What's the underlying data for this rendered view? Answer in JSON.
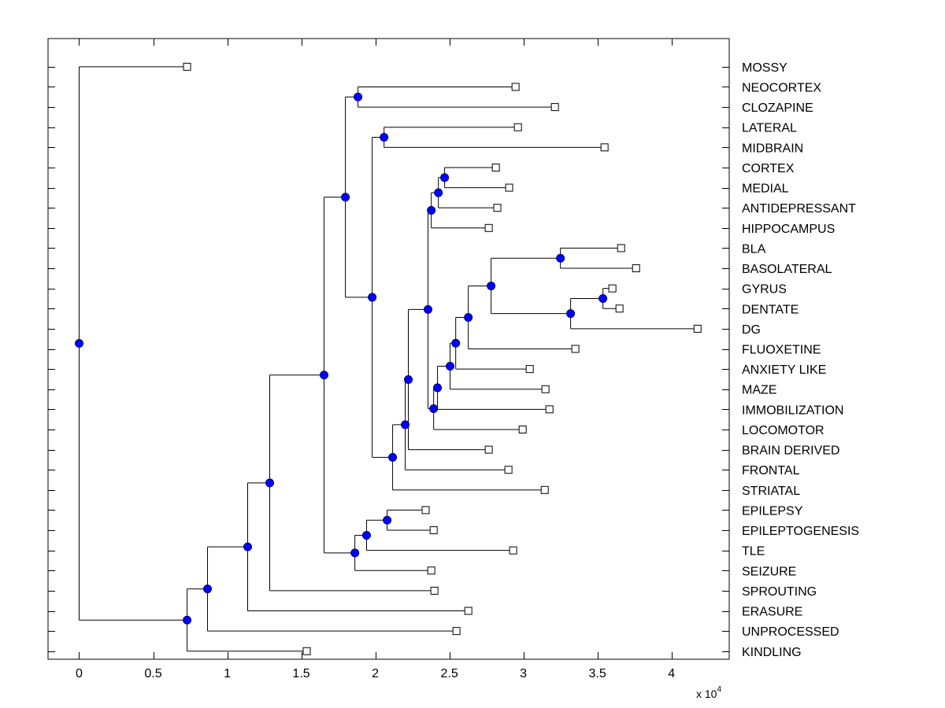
{
  "chart_data": {
    "type": "dendrogram",
    "title": "",
    "xlabel": "",
    "ylabel": "",
    "x_multiplier_label": "x 10",
    "x_multiplier_exponent": "4",
    "xlim": [
      -0.21,
      4.39
    ],
    "ylim": [
      -0.4,
      30.4
    ],
    "xticks": [
      0,
      0.5,
      1,
      1.5,
      2,
      2.5,
      3,
      3.5,
      4
    ],
    "xtick_labels": [
      "0",
      "0.5",
      "1",
      "1.5",
      "2",
      "2.5",
      "3",
      "3.5",
      "4"
    ],
    "grid": false,
    "leaves_top_to_bottom": [
      "MOSSY",
      "NEOCORTEX",
      "CLOZAPINE",
      "LATERAL",
      "MIDBRAIN",
      "CORTEX",
      "MEDIAL",
      "ANTIDEPRESSANT",
      "HIPPOCAMPUS",
      "BLA",
      "BASOLATERAL",
      "GYRUS",
      "DENTATE",
      "DG",
      "FLUOXETINE",
      "ANXIETY LIKE",
      "MAZE",
      "IMMOBILIZATION",
      "LOCOMOTOR",
      "BRAIN DERIVED",
      "FRONTAL",
      "STRIATAL",
      "EPILEPSY",
      "EPILEPTOGENESIS",
      "TLE",
      "SEIZURE",
      "SPROUTING",
      "ERASURE",
      "UNPROCESSED",
      "KINDLING"
    ],
    "node_color": "#0000ff",
    "node_edge_color": "#00007a",
    "leaf_marker_color": "#ffffff",
    "line_color": "#000000",
    "tree": {
      "height": 0,
      "children": [
        {
          "leaf": "MOSSY",
          "height": 0.729
        },
        {
          "height": 0.729,
          "children": [
            {
              "height": 0.867,
              "children": [
                {
                  "height": 1.138,
                  "children": [
                    {
                      "height": 1.287,
                      "children": [
                        {
                          "height": 1.654,
                          "children": [
                            {
                              "height": 1.798,
                              "children": [
                                {
                                  "height": 1.883,
                                  "children": [
                                    {
                                      "leaf": "NEOCORTEX",
                                      "height": 2.947
                                    },
                                    {
                                      "leaf": "CLOZAPINE",
                                      "height": 3.213
                                    }
                                  ]
                                },
                                {
                                  "height": 1.979,
                                  "children": [
                                    {
                                      "height": 2.059,
                                      "children": [
                                        {
                                          "leaf": "LATERAL",
                                          "height": 2.963
                                        },
                                        {
                                          "leaf": "MIDBRAIN",
                                          "height": 3.548
                                        }
                                      ]
                                    },
                                    {
                                      "height": 2.117,
                                      "children": [
                                        {
                                          "height": 2.202,
                                          "children": [
                                            {
                                              "height": 2.223,
                                              "children": [
                                                {
                                                  "height": 2.356,
                                                  "children": [
                                                    {
                                                      "height": 2.378,
                                                      "children": [
                                                        {
                                                          "height": 2.426,
                                                          "children": [
                                                            {
                                                              "height": 2.468,
                                                              "children": [
                                                                {
                                                                  "leaf": "CORTEX",
                                                                  "height": 2.814
                                                                },
                                                                {
                                                                  "leaf": "MEDIAL",
                                                                  "height": 2.904
                                                                }
                                                              ]
                                                            },
                                                            {
                                                              "leaf": "ANTIDEPRESSANT",
                                                              "height": 2.824
                                                            }
                                                          ]
                                                        },
                                                        {
                                                          "leaf": "HIPPOCAMPUS",
                                                          "height": 2.766
                                                        }
                                                      ]
                                                    },
                                                    {
                                                      "height": 2.394,
                                                      "children": [
                                                        {
                                                          "height": 2.42,
                                                          "children": [
                                                            {
                                                              "height": 2.505,
                                                              "children": [
                                                                {
                                                                  "height": 2.543,
                                                                  "children": [
                                                                    {
                                                                      "height": 2.628,
                                                                      "children": [
                                                                        {
                                                                          "height": 2.782,
                                                                          "children": [
                                                                            {
                                                                              "height": 3.25,
                                                                              "children": [
                                                                                {
                                                                                  "leaf": "BLA",
                                                                                  "height": 3.66
                                                                                },
                                                                                {
                                                                                  "leaf": "BASOLATERAL",
                                                                                  "height": 3.761
                                                                                }
                                                                              ]
                                                                            },
                                                                            {
                                                                              "height": 3.319,
                                                                              "children": [
                                                                                {
                                                                                  "height": 3.537,
                                                                                  "children": [
                                                                                    {
                                                                                      "leaf": "GYRUS",
                                                                                      "height": 3.601
                                                                                    },
                                                                                    {
                                                                                      "leaf": "DENTATE",
                                                                                      "height": 3.649
                                                                                    }
                                                                                  ]
                                                                                },
                                                                                {
                                                                                  "leaf": "DG",
                                                                                  "height": 4.176
                                                                                }
                                                                              ]
                                                                            }
                                                                          ]
                                                                        },
                                                                        {
                                                                          "leaf": "FLUOXETINE",
                                                                          "height": 3.351
                                                                        }
                                                                      ]
                                                                    },
                                                                    {
                                                                      "leaf": "ANXIETY LIKE",
                                                                      "height": 3.043
                                                                    }
                                                                  ]
                                                                },
                                                                {
                                                                  "leaf": "MAZE",
                                                                  "height": 3.149
                                                                }
                                                              ]
                                                            },
                                                            {
                                                              "leaf": "IMMOBILIZATION",
                                                              "height": 3.176
                                                            }
                                                          ]
                                                        },
                                                        {
                                                          "leaf": "LOCOMOTOR",
                                                          "height": 2.995
                                                        }
                                                      ]
                                                    }
                                                  ]
                                                },
                                                {
                                                  "leaf": "BRAIN DERIVED",
                                                  "height": 2.766
                                                }
                                              ]
                                            },
                                            {
                                              "leaf": "FRONTAL",
                                              "height": 2.899
                                            }
                                          ]
                                        },
                                        {
                                          "leaf": "STRIATAL",
                                          "height": 3.144
                                        }
                                      ]
                                    }
                                  ]
                                }
                              ]
                            },
                            {
                              "height": 1.862,
                              "children": [
                                {
                                  "height": 1.941,
                                  "children": [
                                    {
                                      "height": 2.08,
                                      "children": [
                                        {
                                          "leaf": "EPILEPSY",
                                          "height": 2.34
                                        },
                                        {
                                          "leaf": "EPILEPTOGENESIS",
                                          "height": 2.394
                                        }
                                      ]
                                    },
                                    {
                                      "leaf": "TLE",
                                      "height": 2.931
                                    }
                                  ]
                                },
                                {
                                  "leaf": "SEIZURE",
                                  "height": 2.378
                                }
                              ]
                            }
                          ]
                        },
                        {
                          "leaf": "SPROUTING",
                          "height": 2.399
                        }
                      ]
                    },
                    {
                      "leaf": "ERASURE",
                      "height": 2.628
                    }
                  ]
                },
                {
                  "leaf": "UNPROCESSED",
                  "height": 2.548
                }
              ]
            },
            {
              "leaf": "KINDLING",
              "height": 1.537
            }
          ]
        }
      ]
    }
  }
}
